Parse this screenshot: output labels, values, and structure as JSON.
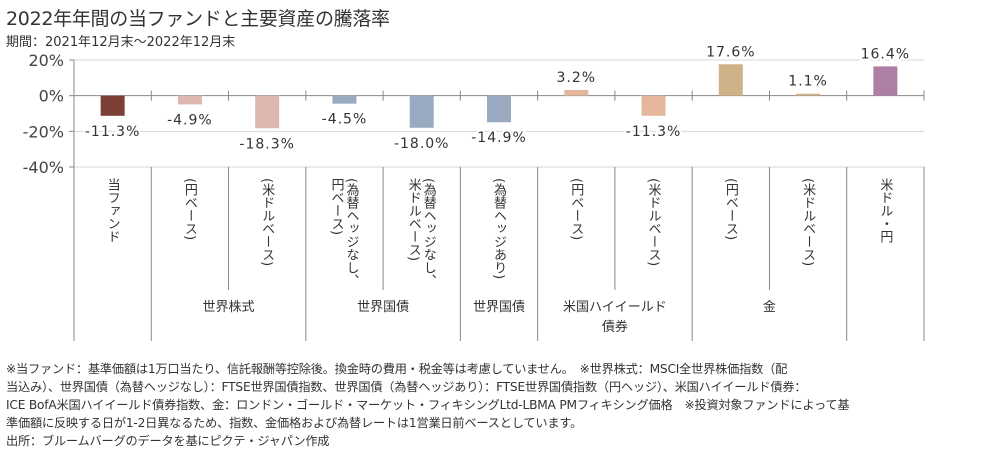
{
  "title": "2022年年間の当ファンドと主要資産の騰落率",
  "subtitle": "期間：2021年12月末～2022年12月末",
  "chart_data": {
    "type": "bar",
    "title": "2022年年間の当ファンドと主要資産の騰落率",
    "subtitle": "期間：2021年12月末～2022年12月末",
    "xlabel": "",
    "ylabel": "",
    "ylim": [
      -40,
      20
    ],
    "yticks": [
      20,
      0,
      -20,
      -40
    ],
    "ytick_labels": [
      "20%",
      "0%",
      "-20%",
      "-40%"
    ],
    "grid": true,
    "legend": "none",
    "categories": [
      "当ファンド",
      "(円ベース)",
      "(米ドルベース)",
      "(為替ヘッジなし、円ベース)",
      "(為替ヘッジなし、米ドルベース)",
      "(為替ヘッジあり)",
      "(円ベース)",
      "(米ドルベース)",
      "(円ベース)",
      "(米ドルベース)",
      "米ドル・円"
    ],
    "category_lines": [
      [
        "当ファンド"
      ],
      [
        "(円ベース)"
      ],
      [
        "(米ドルベース)"
      ],
      [
        "(為替ヘッジなし、",
        "円ベース)"
      ],
      [
        "(為替ヘッジなし、",
        "米ドルベース)"
      ],
      [
        "(為替ヘッジあり)"
      ],
      [
        "(円ベース)"
      ],
      [
        "(米ドルベース)"
      ],
      [
        "(円ベース)"
      ],
      [
        "(米ドルベース)"
      ],
      [
        "米ドル・円"
      ]
    ],
    "values": [
      -11.3,
      -4.9,
      -18.3,
      -4.5,
      -18.0,
      -14.9,
      3.2,
      -11.3,
      17.6,
      1.1,
      16.4
    ],
    "data_labels": [
      "-11.3%",
      "-4.9%",
      "-18.3%",
      "-4.5%",
      "-18.0%",
      "-14.9%",
      "3.2%",
      "-11.3%",
      "17.6%",
      "1.1%",
      "16.4%"
    ],
    "colors": [
      "#7b3f36",
      "#ddb8b0",
      "#ddb8b0",
      "#9aaac0",
      "#9aaac0",
      "#9aaac0",
      "#e4b79c",
      "#e4b79c",
      "#cfb287",
      "#cfb287",
      "#ad7fa5"
    ],
    "groups": [
      {
        "label": "",
        "start": 0,
        "count": 1
      },
      {
        "label": "世界株式",
        "start": 1,
        "count": 2
      },
      {
        "label": "世界国債",
        "start": 3,
        "count": 2
      },
      {
        "label": "世界国債",
        "start": 5,
        "count": 1
      },
      {
        "label": "米国ハイイールド\n債券",
        "start": 6,
        "count": 2
      },
      {
        "label": "金",
        "start": 8,
        "count": 2
      },
      {
        "label": "",
        "start": 10,
        "count": 1
      }
    ]
  },
  "notes": [
    "※当ファンド：基準価額は1万口当たり、信託報酬等控除後。換金時の費用・税金等は考慮していません。　※世界株式：MSCI全世界株価指数（配",
    "当込み）、世界国債（為替ヘッジなし）：FTSE世界国債指数、世界国債（為替ヘッジあり）：FTSE世界国債指数（円ヘッジ）、米国ハイイールド債券：",
    "ICE BofA米国ハイイールド債券指数、金：ロンドン・ゴールド・マーケット・フィキシングLtd-LBMA PMフィキシング価格　※投資対象ファンドによって基",
    "準価額に反映する日が1-2日異なるため、指数、金価格および為替レートは1営業日前ベースとしています。",
    "出所：ブルームバーグのデータを基にピクテ・ジャパン作成"
  ]
}
